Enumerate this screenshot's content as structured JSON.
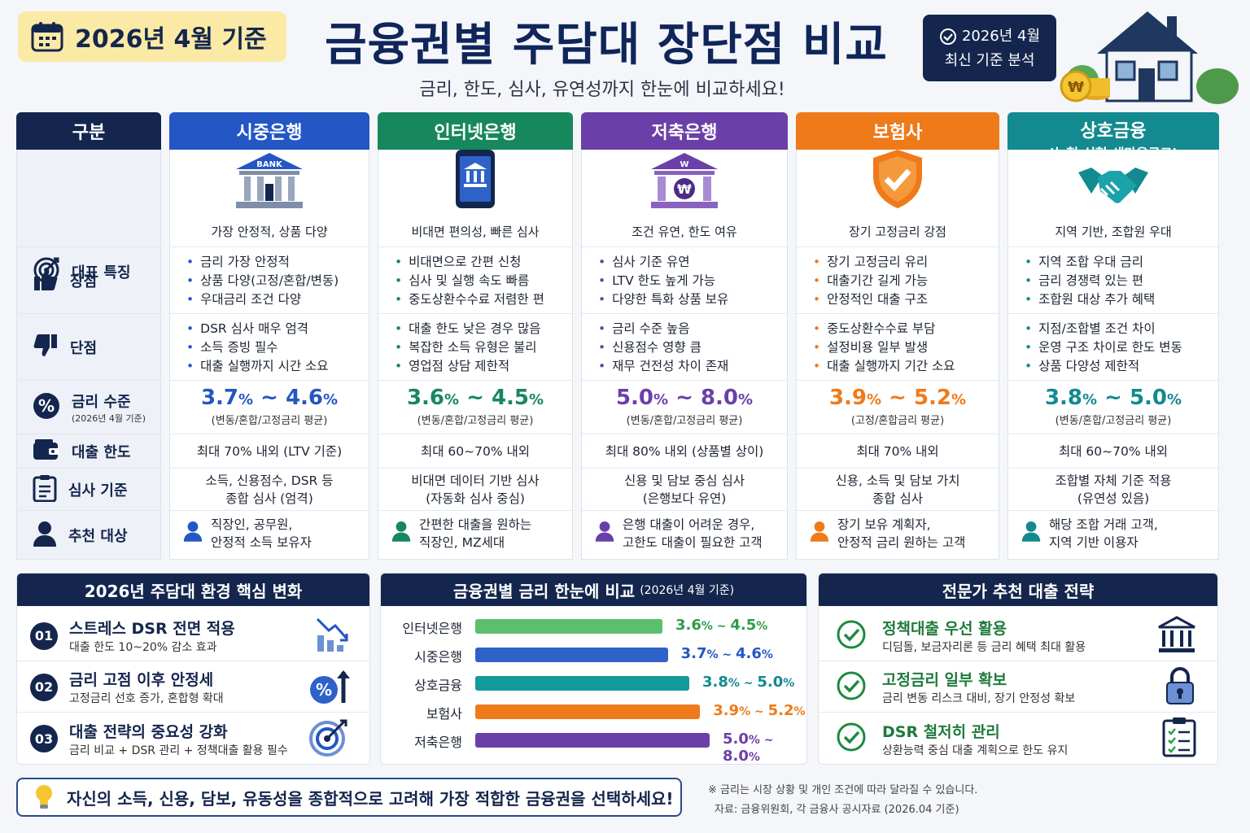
{
  "header": {
    "date_badge": "2026년 4월 기준",
    "title": "금융권별 주담대 장단점 비교",
    "subtitle": "금리, 한도, 심사, 유연성까지 한눈에 비교하세요!",
    "analysis_line1": "2026년 4월",
    "analysis_line2": "최신 기준 분석"
  },
  "table": {
    "label_header": "구분",
    "rows": [
      {
        "label": "대표 특징",
        "icon": "target-icon"
      },
      {
        "label": "장점",
        "icon": "thumbs-up-icon"
      },
      {
        "label": "단점",
        "icon": "thumbs-down-icon"
      },
      {
        "label": "금리 수준",
        "sublabel": "(2026년 4월 기준)",
        "icon": "percent-icon"
      },
      {
        "label": "대출 한도",
        "icon": "wallet-icon"
      },
      {
        "label": "심사 기준",
        "icon": "clipboard-icon"
      },
      {
        "label": "추천 대상",
        "icon": "person-icon"
      }
    ],
    "columns": [
      {
        "name": "시중은행",
        "color": "#2456c4",
        "icon": "bank-icon",
        "feature": "가장 안정적, 상품 다양",
        "pros": [
          "금리 가장 안정적",
          "상품 다양(고정/혼합/변동)",
          "우대금리 조건 다양"
        ],
        "cons": [
          "DSR 심사 매우 엄격",
          "소득 증빙 필수",
          "대출 실행까지 시간 소요"
        ],
        "rate_low": "3.7",
        "rate_high": "4.6",
        "rate_note": "(변동/혼합/고정금리 평균)",
        "limit": "최대 70% 내외 (LTV 기준)",
        "review": [
          "소득, 신용점수, DSR 등",
          "종합 심사 (엄격)"
        ],
        "target": [
          "직장인, 공무원,",
          "안정적 소득 보유자"
        ]
      },
      {
        "name": "인터넷은행",
        "color": "#17875e",
        "icon": "mobile-bank-icon",
        "feature": "비대면 편의성, 빠른 심사",
        "pros": [
          "비대면으로 간편 신청",
          "심사 및 실행 속도 빠름",
          "중도상환수수료 저렴한 편"
        ],
        "cons": [
          "대출 한도 낮은 경우 많음",
          "복잡한 소득 유형은 불리",
          "영업점 상담 제한적"
        ],
        "rate_low": "3.6",
        "rate_high": "4.5",
        "rate_note": "(변동/혼합/고정금리 평균)",
        "limit": "최대 60~70% 내외",
        "review": [
          "비대면 데이터 기반 심사",
          "(자동화 심사 중심)"
        ],
        "target": [
          "간편한 대출을 원하는",
          "직장인, MZ세대"
        ]
      },
      {
        "name": "저축은행",
        "color": "#6b3fa8",
        "icon": "savings-bank-icon",
        "feature": "조건 유연, 한도 여유",
        "pros": [
          "심사 기준 유연",
          "LTV 한도 높게 가능",
          "다양한 특화 상품 보유"
        ],
        "cons": [
          "금리 수준 높음",
          "신용점수 영향 큼",
          "재무 건전성 차이 존재"
        ],
        "rate_low": "5.0",
        "rate_high": "8.0",
        "rate_note": "(변동/혼합/고정금리 평균)",
        "limit": "최대 80% 내외 (상품별 상이)",
        "review": [
          "신용 및 담보 중심 심사",
          "(은행보다 유연)"
        ],
        "target": [
          "은행 대출이 어려운 경우,",
          "고한도 대출이 필요한 고객"
        ]
      },
      {
        "name": "보험사",
        "color": "#ef7a1a",
        "icon": "shield-check-icon",
        "feature": "장기 고정금리 강점",
        "pros": [
          "장기 고정금리 유리",
          "대출기간 길게 가능",
          "안정적인 대출 구조"
        ],
        "cons": [
          "중도상환수수료 부담",
          "설정비용 일부 발생",
          "대출 실행까지 기간 소요"
        ],
        "rate_low": "3.9",
        "rate_high": "5.2",
        "rate_note": "(고정/혼합금리 평균)",
        "limit": "최대 70% 내외",
        "review": [
          "신용, 소득 및 담보 가치",
          "종합 심사"
        ],
        "target": [
          "장기 보유 계획자,",
          "안정적 금리 원하는 고객"
        ]
      },
      {
        "name": "상호금융",
        "subname": "(농협·신협·새마을금고)",
        "color": "#138a8f",
        "icon": "handshake-icon",
        "feature": "지역 기반, 조합원 우대",
        "pros": [
          "지역 조합 우대 금리",
          "금리 경쟁력 있는 편",
          "조합원 대상 추가 혜택"
        ],
        "cons": [
          "지점/조합별 조건 차이",
          "운영 구조 차이로 한도 변동",
          "상품 다양성 제한적"
        ],
        "rate_low": "3.8",
        "rate_high": "5.0",
        "rate_note": "(변동/혼합/고정금리 평균)",
        "limit": "최대 60~70% 내외",
        "review": [
          "조합별 자체 기준 적용",
          "(유연성 있음)"
        ],
        "target": [
          "해당 조합 거래 고객,",
          "지역 기반 이용자"
        ]
      }
    ]
  },
  "changes": {
    "title": "2026년 주담대 환경 핵심 변화",
    "items": [
      {
        "num": "01",
        "title": "스트레스 DSR 전면 적용",
        "desc": "대출 한도 10~20% 감소 효과",
        "icon": "chart-down-icon"
      },
      {
        "num": "02",
        "title": "금리 고점 이후 안정세",
        "desc": "고정금리 선호 증가, 혼합형 확대",
        "icon": "percent-up-icon"
      },
      {
        "num": "03",
        "title": "대출 전략의 중요성 강화",
        "desc": "금리 비교 + DSR 관리 + 정책대출 활용 필수",
        "icon": "target-arrow-icon"
      }
    ]
  },
  "chart_data": {
    "type": "bar",
    "title": "금융권별 금리 한눈에 비교",
    "subtitle": "(2026년 4월 기준)",
    "categories": [
      "인터넷은행",
      "시중은행",
      "상호금융",
      "보험사",
      "저축은행"
    ],
    "ranges": [
      [
        3.6,
        4.5
      ],
      [
        3.7,
        4.6
      ],
      [
        3.8,
        5.0
      ],
      [
        3.9,
        5.2
      ],
      [
        5.0,
        8.0
      ]
    ],
    "labels": [
      [
        "3.6",
        "4.5"
      ],
      [
        "3.7",
        "4.6"
      ],
      [
        "3.8",
        "5.0"
      ],
      [
        "3.9",
        "5.2"
      ],
      [
        "5.0",
        "8.0"
      ]
    ],
    "colors": [
      "#5cbf6e",
      "#2f62c9",
      "#139a9a",
      "#ef7a1a",
      "#6b3fa8"
    ],
    "label_colors": [
      "#2e9c4a",
      "#2456c4",
      "#138a8f",
      "#ef7a1a",
      "#6b3fa8"
    ]
  },
  "strategy": {
    "title": "전문가 추천 대출 전략",
    "items": [
      {
        "title": "정책대출 우선 활용",
        "desc": "디딤돌, 보금자리론 등 금리 혜택 최대 활용",
        "icon": "bank-building-icon"
      },
      {
        "title": "고정금리 일부 확보",
        "desc": "금리 변동 리스크 대비, 장기 안정성 확보",
        "icon": "lock-icon"
      },
      {
        "title": "DSR 철저히 관리",
        "desc": "상환능력 중심 대출 계획으로 한도 유지",
        "icon": "checklist-icon"
      }
    ]
  },
  "footer": {
    "tip": "자신의 소득, 신용, 담보, 유동성을 종합적으로 고려해 가장 적합한 금융권을 선택하세요!",
    "note1": "※ 금리는 시장 상황 및 개인 조건에 따라 달라질 수 있습니다.",
    "note2": "자료: 금융위원회, 각 금융사 공시자료 (2026.04 기준)"
  },
  "symbols": {
    "pct": "%",
    "tilde": " ~ ",
    "won": "₩",
    "bank_sign": "BANK",
    "w": "W"
  }
}
